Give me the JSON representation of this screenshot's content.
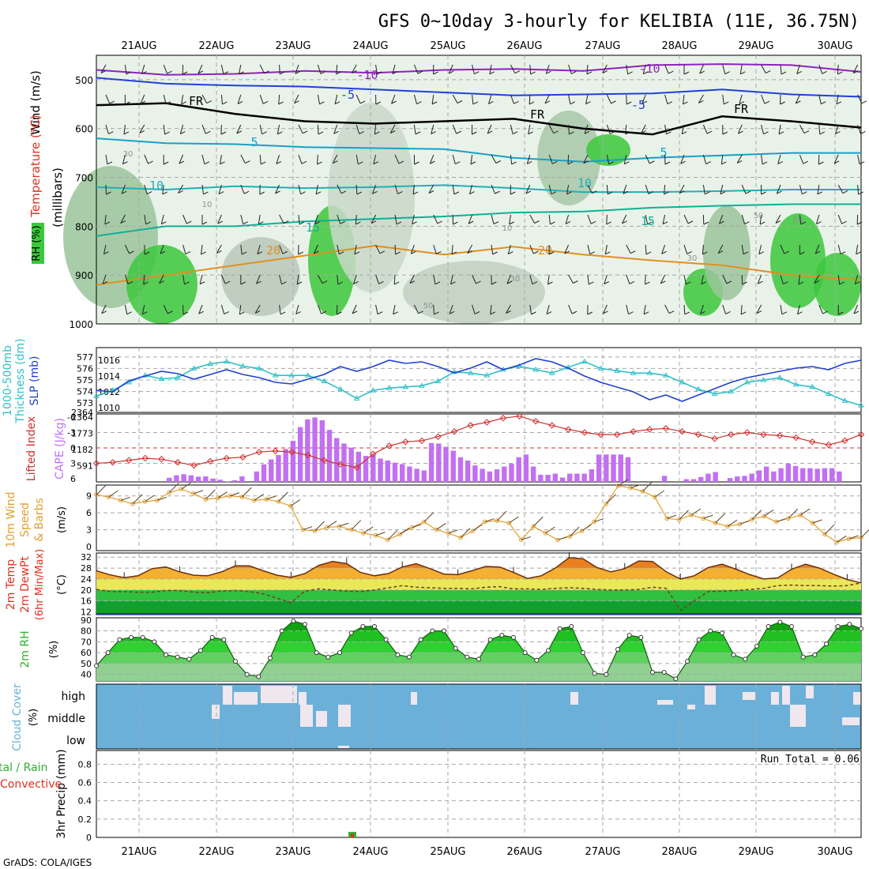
{
  "title": "GFS 0~10day 3-hourly for KELIBIA (11E, 36.75N)",
  "footer": "GrADS: COLA/IGES",
  "dates": [
    "21AUG",
    "22AUG",
    "23AUG",
    "24AUG",
    "25AUG",
    "26AUG",
    "27AUG",
    "28AUG",
    "29AUG",
    "30AUG"
  ],
  "colors": {
    "grid": "#a8a8a8",
    "rh_dark": "#3cc83c",
    "rh_mid": "#a0a0a0",
    "purple": "#9020c0",
    "blue": "#2040d8",
    "cyan": "#18a0c8",
    "teal": "#10b098",
    "orange": "#e09020",
    "darkorange": "#e06010",
    "slp": "#2040d0",
    "thick": "#30c0c8",
    "li": "#d03030",
    "cape": "#c070f0",
    "wind": "#e0a030",
    "cloud": "#6ab0d8",
    "rain": "#30b030",
    "conv": "#e03020"
  },
  "chart_data": [
    {
      "type": "contour",
      "panel": "upper-air",
      "ylabel_lines": [
        "Wind (m/s)",
        "Temperature (°C)",
        "RH (%)"
      ],
      "yunit": "(millibars)",
      "ylim": [
        1000,
        450
      ],
      "yticks": [
        500,
        600,
        700,
        800,
        900,
        1000
      ],
      "isotherms": [
        {
          "label": "-10",
          "pressure": [
            480,
            490,
            488,
            482,
            486,
            480,
            478,
            482,
            470,
            468,
            470,
            484
          ]
        },
        {
          "label": "-5",
          "pressure": [
            496,
            508,
            512,
            514,
            520,
            526,
            532,
            530,
            528,
            520,
            530,
            535
          ]
        },
        {
          "label": "FR",
          "pressure": [
            552,
            548,
            570,
            585,
            590,
            585,
            580,
            600,
            612,
            575,
            585,
            598
          ]
        },
        {
          "label": "5",
          "pressure": [
            620,
            630,
            632,
            638,
            640,
            642,
            660,
            668,
            660,
            655,
            650,
            650
          ]
        },
        {
          "label": "10",
          "pressure": [
            720,
            725,
            718,
            722,
            720,
            716,
            722,
            730,
            730,
            728,
            725,
            725
          ]
        },
        {
          "label": "15",
          "pressure": [
            820,
            800,
            800,
            790,
            785,
            780,
            772,
            770,
            762,
            758,
            755,
            755
          ]
        },
        {
          "label": "20",
          "pressure": [
            920,
            900,
            880,
            860,
            840,
            858,
            842,
            858,
            870,
            880,
            900,
            910
          ]
        }
      ],
      "contour_labels": [
        "-10",
        "-5",
        "FR",
        "5",
        "10",
        "15",
        "20",
        "30",
        "50",
        "10"
      ]
    },
    {
      "type": "line",
      "panel": "thickness-slp",
      "ylabel_left": "1000-500mb Thickness (dm)",
      "ylabel_right": "SLP (mb)",
      "left_ticks": [
        573,
        574,
        575,
        576,
        577
      ],
      "right_ticks": [
        1010,
        1012,
        1014,
        1016
      ],
      "series": [
        {
          "name": "1000-500mb Thickness (dm)",
          "axis": "left",
          "values": [
            573.6,
            574.1,
            574.8,
            575.4,
            575.1,
            575.2,
            576.0,
            576.4,
            576.6,
            576.2,
            576.0,
            575.4,
            575.4,
            575.4,
            574.9,
            574.2,
            573.4,
            574.1,
            574.3,
            574.4,
            574.5,
            574.9,
            575.7,
            575.6,
            575.4,
            575.9,
            576.2,
            575.9,
            575.6,
            576.1,
            576.6,
            576.0,
            575.8,
            575.6,
            575.6,
            575.4,
            574.8,
            574.2,
            573.8,
            574.0,
            574.8,
            575.0,
            575.2,
            574.6,
            574.4,
            573.8,
            573.2,
            572.8
          ]
        },
        {
          "name": "SLP (mb)",
          "axis": "right",
          "values": [
            1012.2,
            1012.0,
            1013.4,
            1014.0,
            1014.6,
            1014.3,
            1013.6,
            1014.2,
            1014.8,
            1014.2,
            1013.8,
            1013.2,
            1013.0,
            1013.6,
            1014.2,
            1015.2,
            1014.6,
            1015.2,
            1016.0,
            1015.6,
            1015.8,
            1015.2,
            1014.4,
            1015.0,
            1015.8,
            1014.8,
            1015.4,
            1016.2,
            1015.8,
            1015.0,
            1014.0,
            1013.2,
            1012.6,
            1012.0,
            1011.0,
            1011.6,
            1010.8,
            1011.6,
            1012.4,
            1013.2,
            1013.8,
            1014.2,
            1014.6,
            1015.0,
            1015.2,
            1014.8,
            1015.6,
            1016.0
          ]
        }
      ]
    },
    {
      "type": "bar+line",
      "panel": "lifted-index-cape",
      "ylabel_left": "Lifted Index",
      "ylabel_right": "CAPE (J/kg)",
      "li_ticks": [
        -6,
        -3,
        0,
        3,
        6
      ],
      "cape_ticks": [
        591,
        1182,
        1773,
        2364
      ],
      "series": [
        {
          "name": "Lifted Index",
          "axis": "left",
          "values": [
            3.0,
            2.8,
            2.4,
            2.0,
            2.2,
            2.8,
            3.4,
            2.6,
            2.0,
            1.8,
            0.8,
            0.6,
            0.8,
            1.4,
            2.4,
            3.2,
            3.8,
            1.2,
            -0.4,
            -1.2,
            -1.4,
            -2.2,
            -3.2,
            -4.4,
            -5.0,
            -5.8,
            -6.2,
            -5.2,
            -4.4,
            -3.6,
            -3.0,
            -2.6,
            -2.6,
            -3.2,
            -3.6,
            -3.8,
            -3.2,
            -2.6,
            -1.8,
            -2.6,
            -3.0,
            -2.6,
            -2.4,
            -2.0,
            -1.2,
            -0.6,
            -1.4,
            -2.6
          ]
        },
        {
          "name": "CAPE (J/kg)",
          "axis": "right",
          "values": [
            0,
            0,
            0,
            0,
            0,
            0,
            0,
            0,
            0,
            0,
            150,
            240,
            280,
            240,
            190,
            200,
            120,
            80,
            20,
            60,
            200,
            0,
            380,
            640,
            820,
            980,
            1200,
            1500,
            2000,
            2280,
            2350,
            2250,
            1900,
            1600,
            1400,
            1250,
            1100,
            950,
            1000,
            850,
            780,
            700,
            650,
            560,
            480,
            420,
            1420,
            1400,
            1280,
            1140,
            900,
            780,
            600,
            480,
            380,
            460,
            560,
            660,
            900,
            1000,
            560,
            260,
            260,
            300,
            160,
            300,
            300,
            300,
            460,
            1000,
            1000,
            1000,
            1000,
            900,
            0,
            0,
            0,
            0,
            220,
            0,
            0,
            100,
            100,
            180,
            300,
            360,
            0,
            140,
            200,
            220,
            300,
            420,
            560,
            380,
            500,
            660,
            580,
            500,
            500,
            480,
            500,
            500,
            380,
            0,
            0,
            0
          ]
        }
      ]
    },
    {
      "type": "line",
      "panel": "10m-wind",
      "ylabel": "10m Wind Speed & Barbs (m/s)",
      "yticks": [
        0,
        3,
        6,
        9
      ],
      "series": [
        {
          "name": "10m Wind Speed (m/s)",
          "values": [
            9.2,
            8.8,
            8.2,
            7.6,
            8.0,
            8.2,
            9.6,
            10.2,
            9.4,
            8.4,
            8.6,
            9.0,
            8.8,
            8.2,
            8.4,
            8.0,
            7.2,
            3.0,
            2.8,
            3.4,
            3.6,
            3.0,
            2.4,
            2.0,
            1.2,
            2.2,
            3.4,
            4.4,
            3.0,
            2.4,
            1.6,
            2.8,
            4.4,
            4.6,
            4.2,
            1.2,
            3.6,
            2.4,
            1.2,
            1.8,
            2.8,
            4.4,
            7.6,
            10.8,
            10.4,
            9.8,
            8.8,
            5.0,
            4.8,
            5.6,
            5.0,
            4.2,
            3.6,
            4.0,
            4.8,
            5.4,
            4.4,
            5.0,
            5.6,
            4.2,
            2.2,
            0.8,
            1.4,
            1.6
          ]
        }
      ]
    },
    {
      "type": "area",
      "panel": "2m-temp-dewpt",
      "ylabel": "2m Temp 2m DewPt (6hr Min/Max) (°C)",
      "yticks": [
        12,
        16,
        20,
        24,
        28,
        32
      ],
      "series": [
        {
          "name": "2m Temp",
          "values": [
            27,
            25.5,
            24.5,
            25.2,
            27.8,
            28.4,
            26.6,
            25.4,
            25.2,
            26.6,
            28.8,
            28.8,
            27.0,
            25.4,
            24.6,
            26.0,
            29.0,
            30.4,
            29.6,
            26.4,
            25.2,
            26.0,
            28.4,
            29.6,
            27.8,
            25.8,
            25.6,
            27.0,
            28.6,
            28.4,
            26.4,
            24.2,
            25.2,
            28.0,
            31.8,
            31.4,
            28.2,
            26.6,
            27.8,
            30.6,
            30.4,
            26.6,
            24.0,
            25.2,
            28.2,
            29.4,
            27.6,
            25.6,
            24.0,
            24.4,
            27.6,
            29.4,
            28.0,
            25.8,
            23.8,
            22.6
          ]
        },
        {
          "name": "2m DewPt",
          "values": [
            20.2,
            19.4,
            19.4,
            19.2,
            19.2,
            19.8,
            19.8,
            19.2,
            19.0,
            19.6,
            19.8,
            19.4,
            18.6,
            17.0,
            15.4,
            19.6,
            20.4,
            20.0,
            19.6,
            19.4,
            20.0,
            20.8,
            21.6,
            21.0,
            20.8,
            20.6,
            20.6,
            20.4,
            21.0,
            21.2,
            20.4,
            20.4,
            20.2,
            20.6,
            20.8,
            20.6,
            20.2,
            20.0,
            20.0,
            20.2,
            21.0,
            20.6,
            12.6,
            16.0,
            19.4,
            19.6,
            19.8,
            20.2,
            20.6,
            21.6,
            21.8,
            21.6,
            21.6,
            21.4,
            21.6,
            22.6
          ]
        }
      ]
    },
    {
      "type": "area",
      "panel": "2m-rh",
      "ylabel": "2m RH (%)",
      "yticks": [
        40,
        50,
        60,
        70,
        80,
        90
      ],
      "values": [
        48,
        60,
        72,
        74,
        74,
        70,
        58,
        56,
        54,
        62,
        74,
        72,
        52,
        40,
        38,
        55,
        80,
        89,
        86,
        60,
        56,
        60,
        78,
        84,
        84,
        72,
        58,
        56,
        72,
        80,
        80,
        64,
        56,
        54,
        72,
        76,
        74,
        60,
        53,
        62,
        82,
        84,
        60,
        41,
        40,
        63,
        76,
        74,
        42,
        42,
        36,
        52,
        72,
        80,
        78,
        58,
        54,
        66,
        84,
        88,
        84,
        56,
        58,
        68,
        84,
        86,
        82
      ]
    },
    {
      "type": "bar",
      "panel": "cloud-cover",
      "ylabel": "Cloud Cover (%)",
      "levels": [
        "high",
        "middle",
        "low"
      ],
      "note": "clear (white) gaps shown at high/middle levels"
    },
    {
      "type": "bar",
      "panel": "precip",
      "ylabel": "3hr Precip (mm)",
      "left_label_lines": [
        "tal / Rain",
        "Convective"
      ],
      "yticks": [
        0,
        0.2,
        0.4,
        0.6,
        0.8
      ],
      "run_total": "Run Total = 0.06",
      "series": [
        {
          "name": "Total / Rain",
          "x_index": 24,
          "value": 0.06
        },
        {
          "name": "Convective",
          "x_index": 24,
          "value": 0.04
        }
      ]
    }
  ],
  "labels": {
    "thick_lines": [
      "1000-500mb",
      "Thickness (dm)"
    ],
    "slp": "SLP (mb)",
    "li": "Lifted Index",
    "cape": "CAPE (J/kg)",
    "wind_lines": [
      "10m Wind",
      "Speed",
      "& Barbs"
    ],
    "wind_unit": "(m/s)",
    "temp_lines": [
      "2m Temp",
      "2m DewPt",
      "(6hr Min/Max)"
    ],
    "temp_unit": "(°C)",
    "rh_lines": [
      "2m RH"
    ],
    "rh_unit": "(%)",
    "cloud_lines": [
      "Cloud Cover"
    ],
    "cloud_unit": "(%)",
    "precip": "3hr Precip (mm)",
    "up_wind": "Wind (m/s)",
    "up_temp": "Temperature (°C)",
    "up_rh": "RH (%)",
    "up_unit": "(millibars)"
  }
}
